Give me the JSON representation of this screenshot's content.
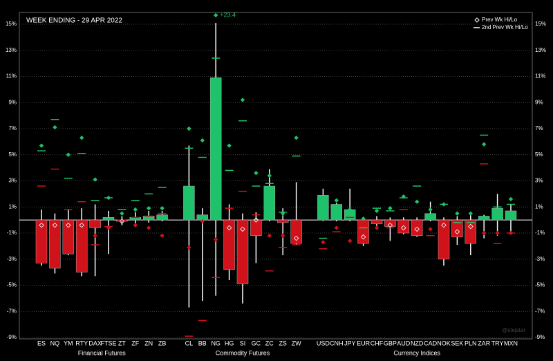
{
  "chart_data": {
    "type": "candlestick",
    "title": "WEEK ENDING - 29 APR 2022",
    "legend": {
      "prev": "Prev Wk Hi/Lo",
      "prev2": "2nd Prev Wk Hi/Lo"
    },
    "watermark": "@stejstar",
    "colors": {
      "up": "#1ec26a",
      "down": "#d0121b",
      "wick": "#ffffff"
    },
    "ylim": [
      -9,
      15.9
    ],
    "yticks": [
      {
        "value": -9,
        "label": "-9%"
      },
      {
        "value": -7,
        "label": "-7%"
      },
      {
        "value": -5,
        "label": "-5%"
      },
      {
        "value": -3,
        "label": "-3%"
      },
      {
        "value": -1,
        "label": "-1%"
      },
      {
        "value": 1,
        "label": "1%"
      },
      {
        "value": 3,
        "label": "3%"
      },
      {
        "value": 5,
        "label": "5%"
      },
      {
        "value": 7,
        "label": "7%"
      },
      {
        "value": 9,
        "label": "9%"
      },
      {
        "value": 11,
        "label": "11%"
      },
      {
        "value": 13,
        "label": "13%"
      },
      {
        "value": 15,
        "label": "15%"
      }
    ],
    "grid": true,
    "groups": [
      {
        "name": "Financial Futures",
        "items": [
          {
            "name": "ES",
            "close": -3.3,
            "high": 0.8,
            "low": -3.5,
            "prev_hi": 5.7,
            "prev_lo": -0.4,
            "prev2_hi": 5.3,
            "prev2_lo": 2.6
          },
          {
            "name": "NQ",
            "close": -3.7,
            "high": 0.5,
            "low": -4.1,
            "prev_hi": 7.1,
            "prev_lo": -0.4,
            "prev2_hi": 7.7,
            "prev2_lo": 3.9
          },
          {
            "name": "YM",
            "close": -2.6,
            "high": 0.8,
            "low": -2.7,
            "prev_hi": 5.0,
            "prev_lo": -0.4,
            "prev2_hi": 3.2,
            "prev2_lo": 0.8
          },
          {
            "name": "RTY",
            "close": -4.0,
            "high": 0.9,
            "low": -4.3,
            "prev_hi": 6.3,
            "prev_lo": -0.4,
            "prev2_hi": 5.1,
            "prev2_lo": 1.4
          },
          {
            "name": "DAX",
            "close": -0.6,
            "high": 1.2,
            "low": -4.3,
            "prev_hi": 3.1,
            "prev_lo": -1.2,
            "prev2_hi": 1.5,
            "prev2_lo": -1.9
          },
          {
            "name": "FTSE",
            "close": 0.2,
            "high": 0.7,
            "low": -2.6,
            "prev_hi": 1.7,
            "prev_lo": -0.6,
            "prev2_hi": 1.7,
            "prev2_lo": -0.5
          },
          {
            "name": "ZT",
            "close": -0.1,
            "high": 0.3,
            "low": -0.4,
            "prev_hi": 0.5,
            "prev_lo": -0.1,
            "prev2_hi": 0.8,
            "prev2_lo": 0.0
          },
          {
            "name": "ZF",
            "close": 0.2,
            "high": 0.6,
            "low": -0.3,
            "prev_hi": 0.8,
            "prev_lo": -0.4,
            "prev2_hi": 1.5,
            "prev2_lo": 0.2
          },
          {
            "name": "ZN",
            "close": 0.3,
            "high": 0.7,
            "low": -0.2,
            "prev_hi": 0.9,
            "prev_lo": -0.6,
            "prev2_hi": 2.0,
            "prev2_lo": 0.3
          },
          {
            "name": "ZB",
            "close": 0.4,
            "high": 0.7,
            "low": -0.1,
            "prev_hi": 0.9,
            "prev_lo": -1.2,
            "prev2_hi": 2.5,
            "prev2_lo": 0.5
          }
        ]
      },
      {
        "name": "Commodity Futures",
        "items": [
          {
            "name": "CL",
            "close": 2.6,
            "high": 5.7,
            "low": -6.7,
            "prev_hi": 7.0,
            "prev_lo": -2.1,
            "prev2_hi": 5.5,
            "prev2_lo": -8.9
          },
          {
            "name": "BB",
            "close": 0.4,
            "high": 0.9,
            "low": -6.2,
            "prev_hi": 6.1,
            "prev_lo": -0.1,
            "prev2_hi": 4.8,
            "prev2_lo": -7.7
          },
          {
            "name": "NG",
            "close": 10.9,
            "high": 15.1,
            "low": -5.8,
            "prev_hi": 23.4,
            "prev_hi_label": "+23.4",
            "prev_lo": -1.5,
            "prev2_hi": 12.4,
            "prev2_lo": -4.4
          },
          {
            "name": "HG",
            "close": -3.8,
            "high": 1.2,
            "low": -4.6,
            "prev_hi": 5.7,
            "prev_lo": -0.6,
            "prev2_hi": 3.8,
            "prev2_lo": 0.9
          },
          {
            "name": "SI",
            "close": -4.9,
            "high": 0.5,
            "low": -6.4,
            "prev_hi": 9.2,
            "prev_lo": -0.7,
            "prev2_hi": 7.6,
            "prev2_lo": 2.2
          },
          {
            "name": "GC",
            "close": -1.2,
            "high": 0.6,
            "low": -3.3,
            "prev_hi": 3.6,
            "prev_lo": 0.0,
            "prev2_hi": 2.6,
            "prev2_lo": 0.4
          },
          {
            "name": "ZC",
            "close": 2.6,
            "high": 3.9,
            "low": -0.1,
            "prev_hi": 3.4,
            "prev_lo": -1.2,
            "prev2_hi": 2.8,
            "prev2_lo": -3.9
          },
          {
            "name": "ZS",
            "close": -0.2,
            "high": 0.9,
            "low": -2.7,
            "prev_hi": 0.5,
            "prev_lo": -1.2,
            "prev2_hi": 0.6,
            "prev2_lo": -2.1
          },
          {
            "name": "ZW",
            "close": -1.8,
            "high": 2.9,
            "low": -1.9,
            "prev_hi": 6.3,
            "prev_lo": -1.4,
            "prev2_hi": 4.9,
            "prev2_lo": -1.9
          }
        ]
      },
      {
        "name": "Currency Indices",
        "items": [
          {
            "name": "USD",
            "close": 1.9,
            "high": 2.4,
            "low": -0.1,
            "prev_hi": 0.1,
            "prev_lo": -1.7,
            "prev2_hi": -1.4,
            "prev2_lo": -2.2
          },
          {
            "name": "CNH",
            "close": 1.2,
            "high": 1.3,
            "low": -0.1,
            "prev_hi": 1.5,
            "prev_lo": -0.6,
            "prev2_hi": 1.1,
            "prev2_lo": -0.9
          },
          {
            "name": "JPY",
            "close": 0.8,
            "high": 2.4,
            "low": -0.1,
            "prev_hi": 0.8,
            "prev_lo": -1.6,
            "prev2_hi": 0.3,
            "prev2_lo": 0.2
          },
          {
            "name": "EUR",
            "close": -1.8,
            "high": 0.1,
            "low": -2.0,
            "prev_hi": 0.1,
            "prev_lo": -1.3,
            "prev2_hi": -0.6,
            "prev2_lo": -0.9
          },
          {
            "name": "CHF",
            "close": -0.3,
            "high": 0.3,
            "low": -0.7,
            "prev_hi": 0.7,
            "prev_lo": -0.6,
            "prev2_hi": 0.9,
            "prev2_lo": -0.1
          },
          {
            "name": "GBP",
            "close": -0.5,
            "high": 0.2,
            "low": -1.6,
            "prev_hi": 0.9,
            "prev_lo": -0.4,
            "prev2_hi": 0.7,
            "prev2_lo": -0.6
          },
          {
            "name": "AUD",
            "close": -1.0,
            "high": 0.2,
            "low": -1.1,
            "prev_hi": 1.8,
            "prev_lo": -0.6,
            "prev2_hi": 1.7,
            "prev2_lo": 0.8
          },
          {
            "name": "NZD",
            "close": -1.2,
            "high": 0.2,
            "low": -1.3,
            "prev_hi": 1.4,
            "prev_lo": -0.7,
            "prev2_hi": 2.6,
            "prev2_lo": -0.5
          },
          {
            "name": "CAD",
            "close": 0.5,
            "high": 1.4,
            "low": -0.1,
            "prev_hi": 0.8,
            "prev_lo": -0.7,
            "prev2_hi": 0.3,
            "prev2_lo": -1.2
          },
          {
            "name": "NOK",
            "close": -3.0,
            "high": 0.2,
            "low": -3.5,
            "prev_hi": 1.2,
            "prev_lo": -0.4,
            "prev2_hi": 1.2,
            "prev2_lo": -0.5
          },
          {
            "name": "SEK",
            "close": -1.3,
            "high": 0.3,
            "low": -1.9,
            "prev_hi": 0.5,
            "prev_lo": -0.9,
            "prev2_hi": -0.2,
            "prev2_lo": -0.7
          },
          {
            "name": "PLN",
            "close": -1.8,
            "high": 0.6,
            "low": -2.7,
            "prev_hi": 0.5,
            "prev_lo": -0.5,
            "prev2_hi": -0.2,
            "prev2_lo": -1.7
          },
          {
            "name": "ZAR",
            "close": 0.3,
            "high": 0.4,
            "low": -1.4,
            "prev_hi": 5.8,
            "prev_lo": -1.0,
            "prev2_hi": 6.5,
            "prev2_lo": 4.3
          },
          {
            "name": "TRY",
            "close": 0.9,
            "high": 2.0,
            "low": -1.2,
            "prev_hi": 0.1,
            "prev_lo": -1.0,
            "prev2_hi": 1.0,
            "prev2_lo": -1.8
          },
          {
            "name": "MXN",
            "close": 0.7,
            "high": 1.2,
            "low": -1.0,
            "prev_hi": 1.6,
            "prev_lo": -1.0,
            "prev2_hi": 1.2,
            "prev2_lo": -1.0
          }
        ]
      }
    ]
  }
}
